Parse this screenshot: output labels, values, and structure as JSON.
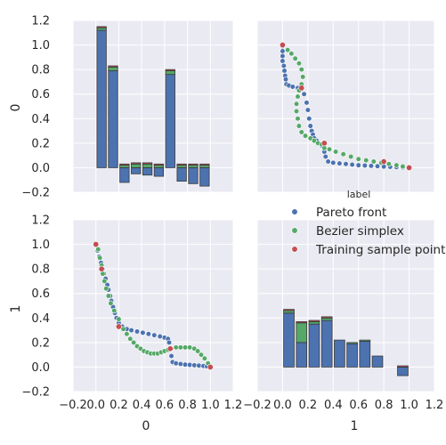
{
  "colors": {
    "panel_bg": "#EAEAF2",
    "grid": "#FFFFFF",
    "pareto_front": "#4C72B0",
    "bezier_simplex": "#55A868",
    "training_sample_point": "#C44E52",
    "text": "#262626"
  },
  "chart_data": {
    "type": "pairplot",
    "grid": true,
    "variables": [
      "0",
      "1"
    ],
    "legend": {
      "title": "label",
      "placement": "top-right",
      "entries": [
        {
          "label": "Pareto front",
          "color": "#4C72B0"
        },
        {
          "label": "Bezier simplex",
          "color": "#55A868"
        },
        {
          "label": "Training sample point",
          "color": "#C44E52"
        }
      ]
    },
    "axes": {
      "xlim": [
        -0.2,
        1.2
      ],
      "ylim": [
        -0.2,
        1.2
      ],
      "xticks": [
        "−0.2",
        "0.0",
        "0.2",
        "0.4",
        "0.6",
        "0.8",
        "1.0",
        "1.2"
      ],
      "yticks": [
        "−0.2",
        "0.0",
        "0.2",
        "0.4",
        "0.6",
        "0.8",
        "1.0",
        "1.2"
      ],
      "xticks_values": [
        -0.2,
        0.0,
        0.2,
        0.4,
        0.6,
        0.8,
        1.0,
        1.2
      ],
      "yticks_values": [
        -0.2,
        0.0,
        0.2,
        0.4,
        0.6,
        0.8,
        1.0,
        1.2
      ],
      "xlabel_bottom_left": "0",
      "xlabel_bottom_right": "1",
      "ylabel_top": "0",
      "ylabel_bottom": "1"
    },
    "hist_0": {
      "type": "bar",
      "bin_edges": [
        0.0,
        0.1,
        0.2,
        0.3,
        0.4,
        0.5,
        0.6,
        0.7,
        0.8,
        0.9,
        1.0
      ],
      "stack_order": [
        "Pareto front",
        "Bezier simplex",
        "Training sample point"
      ],
      "series": [
        {
          "name": "Pareto front",
          "values": [
            1.12,
            0.79,
            -0.12,
            -0.05,
            -0.06,
            -0.07,
            0.76,
            -0.11,
            -0.13,
            -0.15
          ]
        },
        {
          "name": "Bezier simplex",
          "values": [
            0.02,
            0.03,
            0.02,
            0.03,
            0.03,
            0.02,
            0.03,
            0.02,
            0.02,
            0.02
          ]
        },
        {
          "name": "Training sample point",
          "values": [
            0.01,
            0.01,
            0.01,
            0.01,
            0.01,
            0.01,
            0.01,
            0.01,
            0.01,
            0.01
          ]
        }
      ]
    },
    "hist_1": {
      "type": "bar",
      "bin_edges": [
        0.0,
        0.1,
        0.2,
        0.3,
        0.4,
        0.5,
        0.6,
        0.7,
        0.8,
        0.9,
        1.0
      ],
      "stack_order": [
        "Pareto front",
        "Bezier simplex",
        "Training sample point"
      ],
      "series": [
        {
          "name": "Pareto front",
          "values": [
            0.44,
            0.2,
            0.35,
            0.38,
            0.22,
            0.19,
            0.21,
            0.09,
            0.0,
            -0.07
          ]
        },
        {
          "name": "Bezier simplex",
          "values": [
            0.02,
            0.16,
            0.02,
            0.02,
            0.0,
            0.01,
            0.01,
            0.0,
            0.0,
            0.0
          ]
        },
        {
          "name": "Training sample point",
          "values": [
            0.01,
            0.01,
            0.01,
            0.01,
            0.0,
            0.0,
            0.0,
            0.0,
            0.0,
            0.01
          ]
        }
      ]
    },
    "scatter_0_vs_1": {
      "type": "scatter",
      "series": [
        {
          "name": "Pareto front",
          "points": [
            [
              0.0,
              1.0
            ],
            [
              0.015,
              0.95
            ],
            [
              0.03,
              0.9
            ],
            [
              0.045,
              0.85
            ],
            [
              0.06,
              0.8
            ],
            [
              0.07,
              0.76
            ],
            [
              0.085,
              0.72
            ],
            [
              0.1,
              0.67
            ],
            [
              0.11,
              0.63
            ],
            [
              0.125,
              0.58
            ],
            [
              0.135,
              0.54
            ],
            [
              0.15,
              0.49
            ],
            [
              0.165,
              0.44
            ],
            [
              0.18,
              0.4
            ],
            [
              0.2,
              0.36
            ],
            [
              0.23,
              0.33
            ],
            [
              0.27,
              0.31
            ],
            [
              0.31,
              0.3
            ],
            [
              0.36,
              0.29
            ],
            [
              0.41,
              0.28
            ],
            [
              0.46,
              0.27
            ],
            [
              0.51,
              0.26
            ],
            [
              0.56,
              0.25
            ],
            [
              0.6,
              0.24
            ],
            [
              0.63,
              0.23
            ],
            [
              0.64,
              0.2
            ],
            [
              0.65,
              0.15
            ],
            [
              0.66,
              0.09
            ],
            [
              0.67,
              0.04
            ],
            [
              0.7,
              0.03
            ],
            [
              0.74,
              0.025
            ],
            [
              0.78,
              0.02
            ],
            [
              0.82,
              0.018
            ],
            [
              0.86,
              0.015
            ],
            [
              0.9,
              0.012
            ],
            [
              0.94,
              0.009
            ],
            [
              0.97,
              0.006
            ],
            [
              1.0,
              0.0
            ]
          ]
        },
        {
          "name": "Bezier simplex",
          "points": [
            [
              0.02,
              0.96
            ],
            [
              0.035,
              0.89
            ],
            [
              0.05,
              0.83
            ],
            [
              0.06,
              0.76
            ],
            [
              0.075,
              0.7
            ],
            [
              0.09,
              0.64
            ],
            [
              0.11,
              0.58
            ],
            [
              0.13,
              0.52
            ],
            [
              0.16,
              0.46
            ],
            [
              0.2,
              0.39
            ],
            [
              0.24,
              0.31
            ],
            [
              0.27,
              0.27
            ],
            [
              0.3,
              0.23
            ],
            [
              0.33,
              0.2
            ],
            [
              0.36,
              0.17
            ],
            [
              0.39,
              0.15
            ],
            [
              0.42,
              0.13
            ],
            [
              0.45,
              0.12
            ],
            [
              0.48,
              0.11
            ],
            [
              0.51,
              0.11
            ],
            [
              0.54,
              0.11
            ],
            [
              0.57,
              0.12
            ],
            [
              0.6,
              0.13
            ],
            [
              0.63,
              0.14
            ],
            [
              0.66,
              0.15
            ],
            [
              0.7,
              0.16
            ],
            [
              0.74,
              0.16
            ],
            [
              0.78,
              0.16
            ],
            [
              0.82,
              0.16
            ],
            [
              0.86,
              0.15
            ],
            [
              0.89,
              0.13
            ],
            [
              0.92,
              0.1
            ],
            [
              0.95,
              0.07
            ],
            [
              0.98,
              0.03
            ]
          ]
        },
        {
          "name": "Training sample point",
          "points": [
            [
              0.0,
              1.0
            ],
            [
              0.05,
              0.8
            ],
            [
              0.2,
              0.33
            ],
            [
              0.65,
              0.15
            ],
            [
              1.0,
              0.0
            ]
          ]
        }
      ]
    },
    "scatter_1_vs_0": {
      "type": "scatter",
      "series": [
        {
          "name": "Pareto front",
          "points": [
            [
              0.0,
              0.99
            ],
            [
              0.0,
              0.95
            ],
            [
              0.0,
              0.91
            ],
            [
              0.0,
              0.87
            ],
            [
              0.01,
              0.83
            ],
            [
              0.015,
              0.79
            ],
            [
              0.02,
              0.75
            ],
            [
              0.025,
              0.72
            ],
            [
              0.03,
              0.68
            ],
            [
              0.05,
              0.67
            ],
            [
              0.08,
              0.66
            ],
            [
              0.12,
              0.65
            ],
            [
              0.15,
              0.64
            ],
            [
              0.17,
              0.6
            ],
            [
              0.19,
              0.53
            ],
            [
              0.2,
              0.47
            ],
            [
              0.21,
              0.4
            ],
            [
              0.22,
              0.34
            ],
            [
              0.23,
              0.3
            ],
            [
              0.24,
              0.27
            ],
            [
              0.25,
              0.24
            ],
            [
              0.27,
              0.22
            ],
            [
              0.31,
              0.18
            ],
            [
              0.33,
              0.13
            ],
            [
              0.34,
              0.09
            ],
            [
              0.36,
              0.05
            ],
            [
              0.4,
              0.04
            ],
            [
              0.45,
              0.035
            ],
            [
              0.5,
              0.03
            ],
            [
              0.55,
              0.025
            ],
            [
              0.6,
              0.02
            ],
            [
              0.65,
              0.018
            ],
            [
              0.7,
              0.015
            ],
            [
              0.75,
              0.012
            ],
            [
              0.8,
              0.009
            ],
            [
              0.85,
              0.007
            ],
            [
              0.9,
              0.004
            ],
            [
              0.95,
              0.002
            ],
            [
              1.0,
              0.0
            ]
          ]
        },
        {
          "name": "Bezier simplex",
          "points": [
            [
              0.04,
              0.96
            ],
            [
              0.07,
              0.93
            ],
            [
              0.1,
              0.89
            ],
            [
              0.13,
              0.85
            ],
            [
              0.15,
              0.8
            ],
            [
              0.16,
              0.74
            ],
            [
              0.15,
              0.68
            ],
            [
              0.13,
              0.63
            ],
            [
              0.12,
              0.58
            ],
            [
              0.11,
              0.52
            ],
            [
              0.11,
              0.46
            ],
            [
              0.12,
              0.4
            ],
            [
              0.13,
              0.34
            ],
            [
              0.15,
              0.29
            ],
            [
              0.18,
              0.26
            ],
            [
              0.22,
              0.24
            ],
            [
              0.25,
              0.22
            ],
            [
              0.28,
              0.2
            ],
            [
              0.31,
              0.19
            ],
            [
              0.33,
              0.16
            ],
            [
              0.37,
              0.15
            ],
            [
              0.42,
              0.13
            ],
            [
              0.48,
              0.11
            ],
            [
              0.54,
              0.09
            ],
            [
              0.6,
              0.07
            ],
            [
              0.66,
              0.06
            ],
            [
              0.72,
              0.05
            ],
            [
              0.78,
              0.04
            ],
            [
              0.84,
              0.03
            ],
            [
              0.9,
              0.02
            ],
            [
              0.95,
              0.01
            ]
          ]
        },
        {
          "name": "Training sample point",
          "points": [
            [
              0.0,
              1.0
            ],
            [
              0.15,
              0.65
            ],
            [
              0.33,
              0.2
            ],
            [
              0.8,
              0.05
            ],
            [
              1.0,
              0.0
            ]
          ]
        }
      ]
    }
  }
}
